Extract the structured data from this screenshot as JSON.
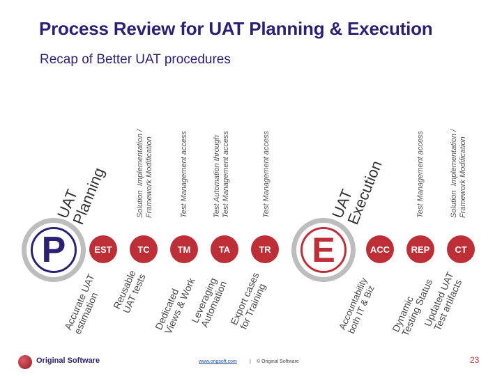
{
  "title": "Process Review for UAT Planning & Execution",
  "subtitle": "Recap of Better UAT procedures",
  "phases": {
    "planning_label": "UAT\nPlanning",
    "planning_letter": "P",
    "execution_label": "UAT\nExecution",
    "execution_letter": "E"
  },
  "circles": {
    "est": "EST",
    "tc": "TC",
    "tm": "TM",
    "ta": "TA",
    "tr": "TR",
    "acc": "ACC",
    "rep": "REP",
    "ct": "CT"
  },
  "top_labels": {
    "solution1": "Solution  Implementation /\nFramework Modification",
    "testmgmt1": "Test Management access",
    "automation": "Test Automation through\nTest Management access",
    "testmgmt2": "Test Management access",
    "testmgmt3": "Test Management access",
    "solution2": "Solution  Implementation /\nFramework Modification"
  },
  "bottom_labels": {
    "est": "Accurate UAT\nestimation",
    "tc": "Reusable\nUAT tests",
    "tm": "Dedicated\nViews & Work",
    "ta": "Leveraging\nAutomation",
    "tr": "Export cases\nfor Training",
    "acc": "Accountability\nboth IT & Biz",
    "rep": "Dynamic\nTesting Status",
    "ct": "Updated UAT\nTest artifacts"
  },
  "footer": {
    "logo": "Original Software",
    "link": "www.origsoft.com",
    "separator": "|",
    "copyright": "© Original Software",
    "page": "23"
  },
  "colors": {
    "accent": "#bd2e37",
    "title": "#2d1f74",
    "ring": "#bdbdbd"
  }
}
